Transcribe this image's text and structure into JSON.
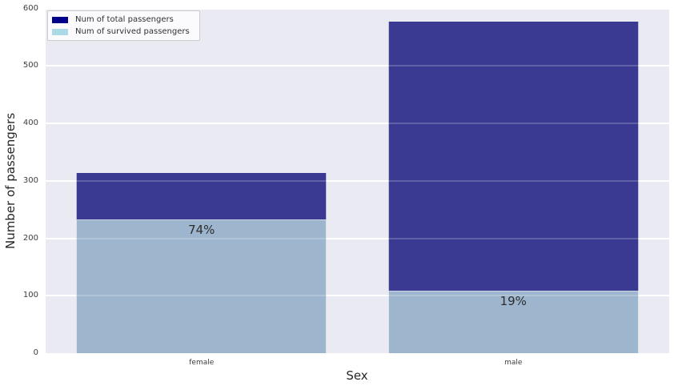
{
  "chart_data": {
    "type": "bar",
    "title": "",
    "xlabel": "Sex",
    "ylabel": "Number of passengers",
    "categories": [
      "female",
      "male"
    ],
    "series": [
      {
        "name": "Num of total passengers",
        "legend_color": "#00008B",
        "bar_color": "#3B3A93",
        "values": [
          314,
          577
        ]
      },
      {
        "name": "Num of survived passengers",
        "legend_color": "#ADD8E6",
        "bar_color": "#9DB5CD",
        "values": [
          233,
          109
        ]
      }
    ],
    "bar_labels": [
      "74%",
      "19%"
    ],
    "ylim": [
      0,
      600
    ],
    "yticks": [
      0,
      100,
      200,
      300,
      400,
      500,
      600
    ],
    "grid": true,
    "legend_position": "upper-left",
    "plot_background_color": "#EAEAF2",
    "gridline_color": "#FFFFFF"
  }
}
